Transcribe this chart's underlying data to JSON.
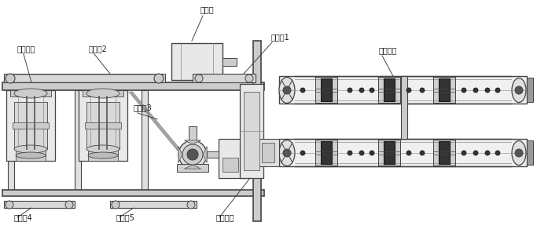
{
  "bg_color": "#ffffff",
  "line_color": "#444444",
  "dark_color": "#1a1a1a",
  "gray_color": "#999999",
  "light_gray": "#cccccc",
  "mid_gray": "#888888",
  "dark_gray": "#555555",
  "labels": {
    "feeder": "喟料机",
    "screen": "筛选设备",
    "belt2": "输送幆2",
    "belt1": "输送幆1",
    "belt3": "输送幆3",
    "belt4": "输送幆4",
    "belt5": "输送幆5",
    "mill": "立磨设备",
    "ball_mill": "球磨设备"
  }
}
